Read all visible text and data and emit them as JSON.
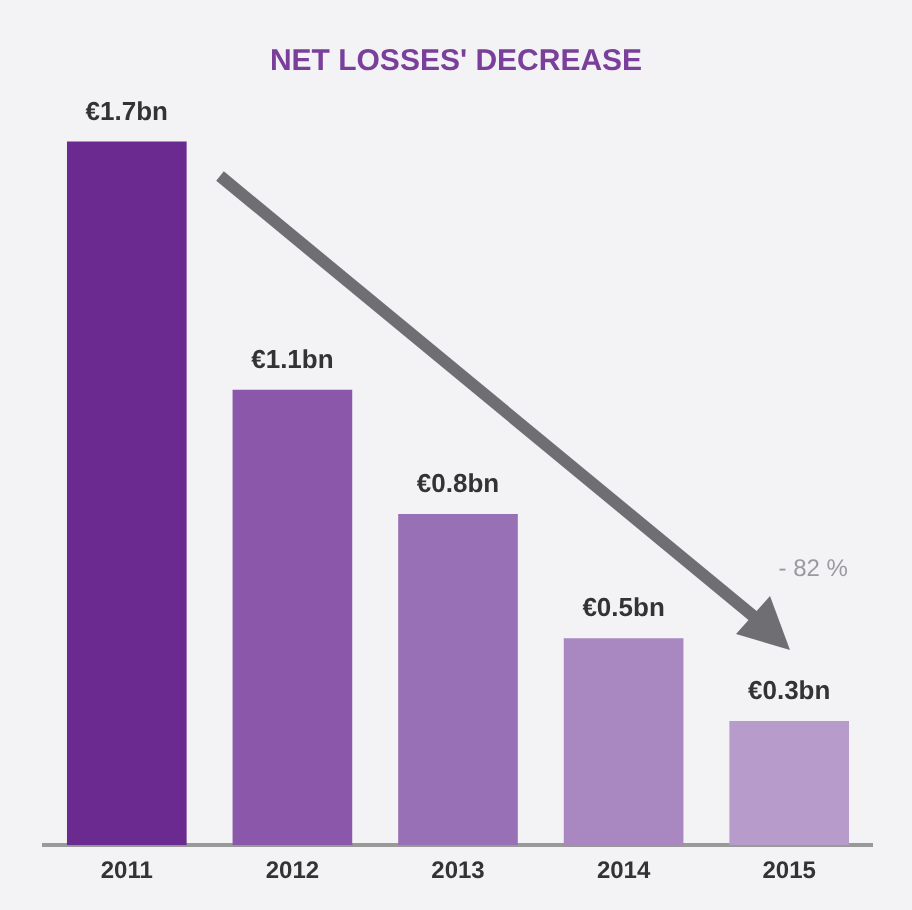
{
  "chart_data": {
    "type": "bar",
    "title": "NET LOSSES' DECREASE",
    "categories": [
      "2011",
      "2012",
      "2013",
      "2014",
      "2015"
    ],
    "values": [
      1.7,
      1.1,
      0.8,
      0.5,
      0.3
    ],
    "colors": [
      "#6b2a8f",
      "#8a57aa",
      "#9870b5",
      "#a987c1",
      "#b79bcb"
    ],
    "value_labels": [
      "€1.7bn",
      "€1.1bn",
      "€0.8bn",
      "€0.5bn",
      "€0.3bn"
    ],
    "annotations": [
      "- 82 %"
    ],
    "grid": false,
    "legend": false
  }
}
